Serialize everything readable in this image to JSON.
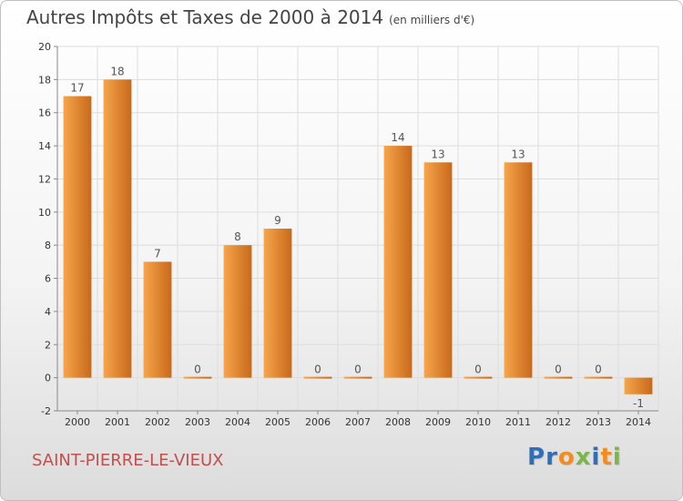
{
  "header": {
    "title": "Autres Impôts et Taxes de 2000 à 2014",
    "subtitle": "(en milliers d'€)"
  },
  "footer": {
    "commune": "SAINT-PIERRE-LE-VIEUX",
    "logo_letters": [
      {
        "ch": "P",
        "color": "#2e6fb7"
      },
      {
        "ch": "r",
        "color": "#2e6fb7"
      },
      {
        "ch": "o",
        "color": "#f28c1e"
      },
      {
        "ch": "x",
        "color": "#7ab648"
      },
      {
        "ch": "i",
        "color": "#2e6fb7"
      },
      {
        "ch": "t",
        "color": "#f28c1e"
      },
      {
        "ch": "i",
        "color": "#7ab648"
      }
    ]
  },
  "colors": {
    "bar_light": "#f7a54c",
    "bar_dark": "#c8691a",
    "grid": "#dddddd",
    "axis": "#888888"
  },
  "chart_data": {
    "type": "bar",
    "categories": [
      "2000",
      "2001",
      "2002",
      "2003",
      "2004",
      "2005",
      "2006",
      "2007",
      "2008",
      "2009",
      "2010",
      "2011",
      "2012",
      "2013",
      "2014"
    ],
    "values": [
      17,
      18,
      7,
      0,
      8,
      9,
      0,
      0,
      14,
      13,
      0,
      13,
      0,
      0,
      -1
    ],
    "ylim": [
      -2,
      20
    ],
    "yticks": [
      -2,
      0,
      2,
      4,
      6,
      8,
      10,
      12,
      14,
      16,
      18,
      20
    ],
    "grid": true,
    "data_labels": true
  }
}
